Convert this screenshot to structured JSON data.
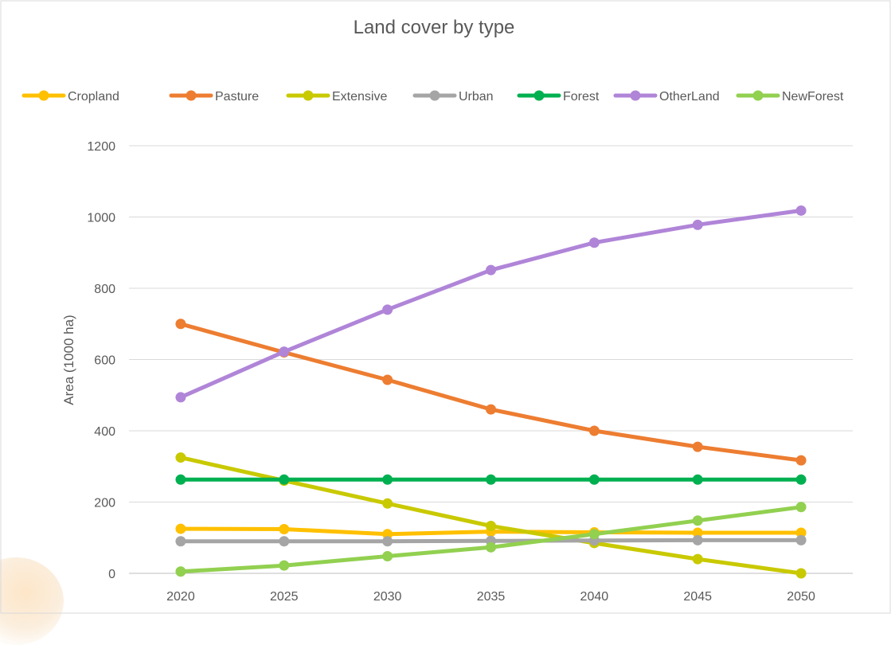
{
  "chart_data": {
    "type": "line",
    "title": "Land cover by type",
    "ylabel": "Area (1000 ha)",
    "xlabel": "",
    "x": [
      "2020",
      "2025",
      "2030",
      "2035",
      "2040",
      "2045",
      "2050"
    ],
    "ylim": [
      0,
      1200
    ],
    "yticks": [
      "0",
      "200",
      "400",
      "600",
      "800",
      "1000",
      "1200"
    ],
    "grid": true,
    "legend_position": "top",
    "series": [
      {
        "name": "Cropland",
        "color": "#FFC000",
        "values": [
          125,
          124,
          110,
          117,
          115,
          114,
          114
        ]
      },
      {
        "name": "Pasture",
        "color": "#ED7D31",
        "values": [
          700,
          620,
          543,
          460,
          400,
          355,
          317
        ]
      },
      {
        "name": "Extensive",
        "color": "#C9C900",
        "values": [
          325,
          260,
          196,
          133,
          85,
          40,
          0
        ]
      },
      {
        "name": "Urban",
        "color": "#A5A5A5",
        "values": [
          90,
          90,
          90,
          91,
          92,
          93,
          93
        ]
      },
      {
        "name": "Forest",
        "color": "#00B050",
        "values": [
          263,
          263,
          263,
          263,
          263,
          263,
          263
        ]
      },
      {
        "name": "OtherLand",
        "color": "#B085D8",
        "values": [
          494,
          622,
          740,
          851,
          928,
          978,
          1018
        ]
      },
      {
        "name": "NewForest",
        "color": "#92D050",
        "values": [
          5,
          22,
          48,
          73,
          110,
          148,
          186
        ]
      }
    ]
  }
}
